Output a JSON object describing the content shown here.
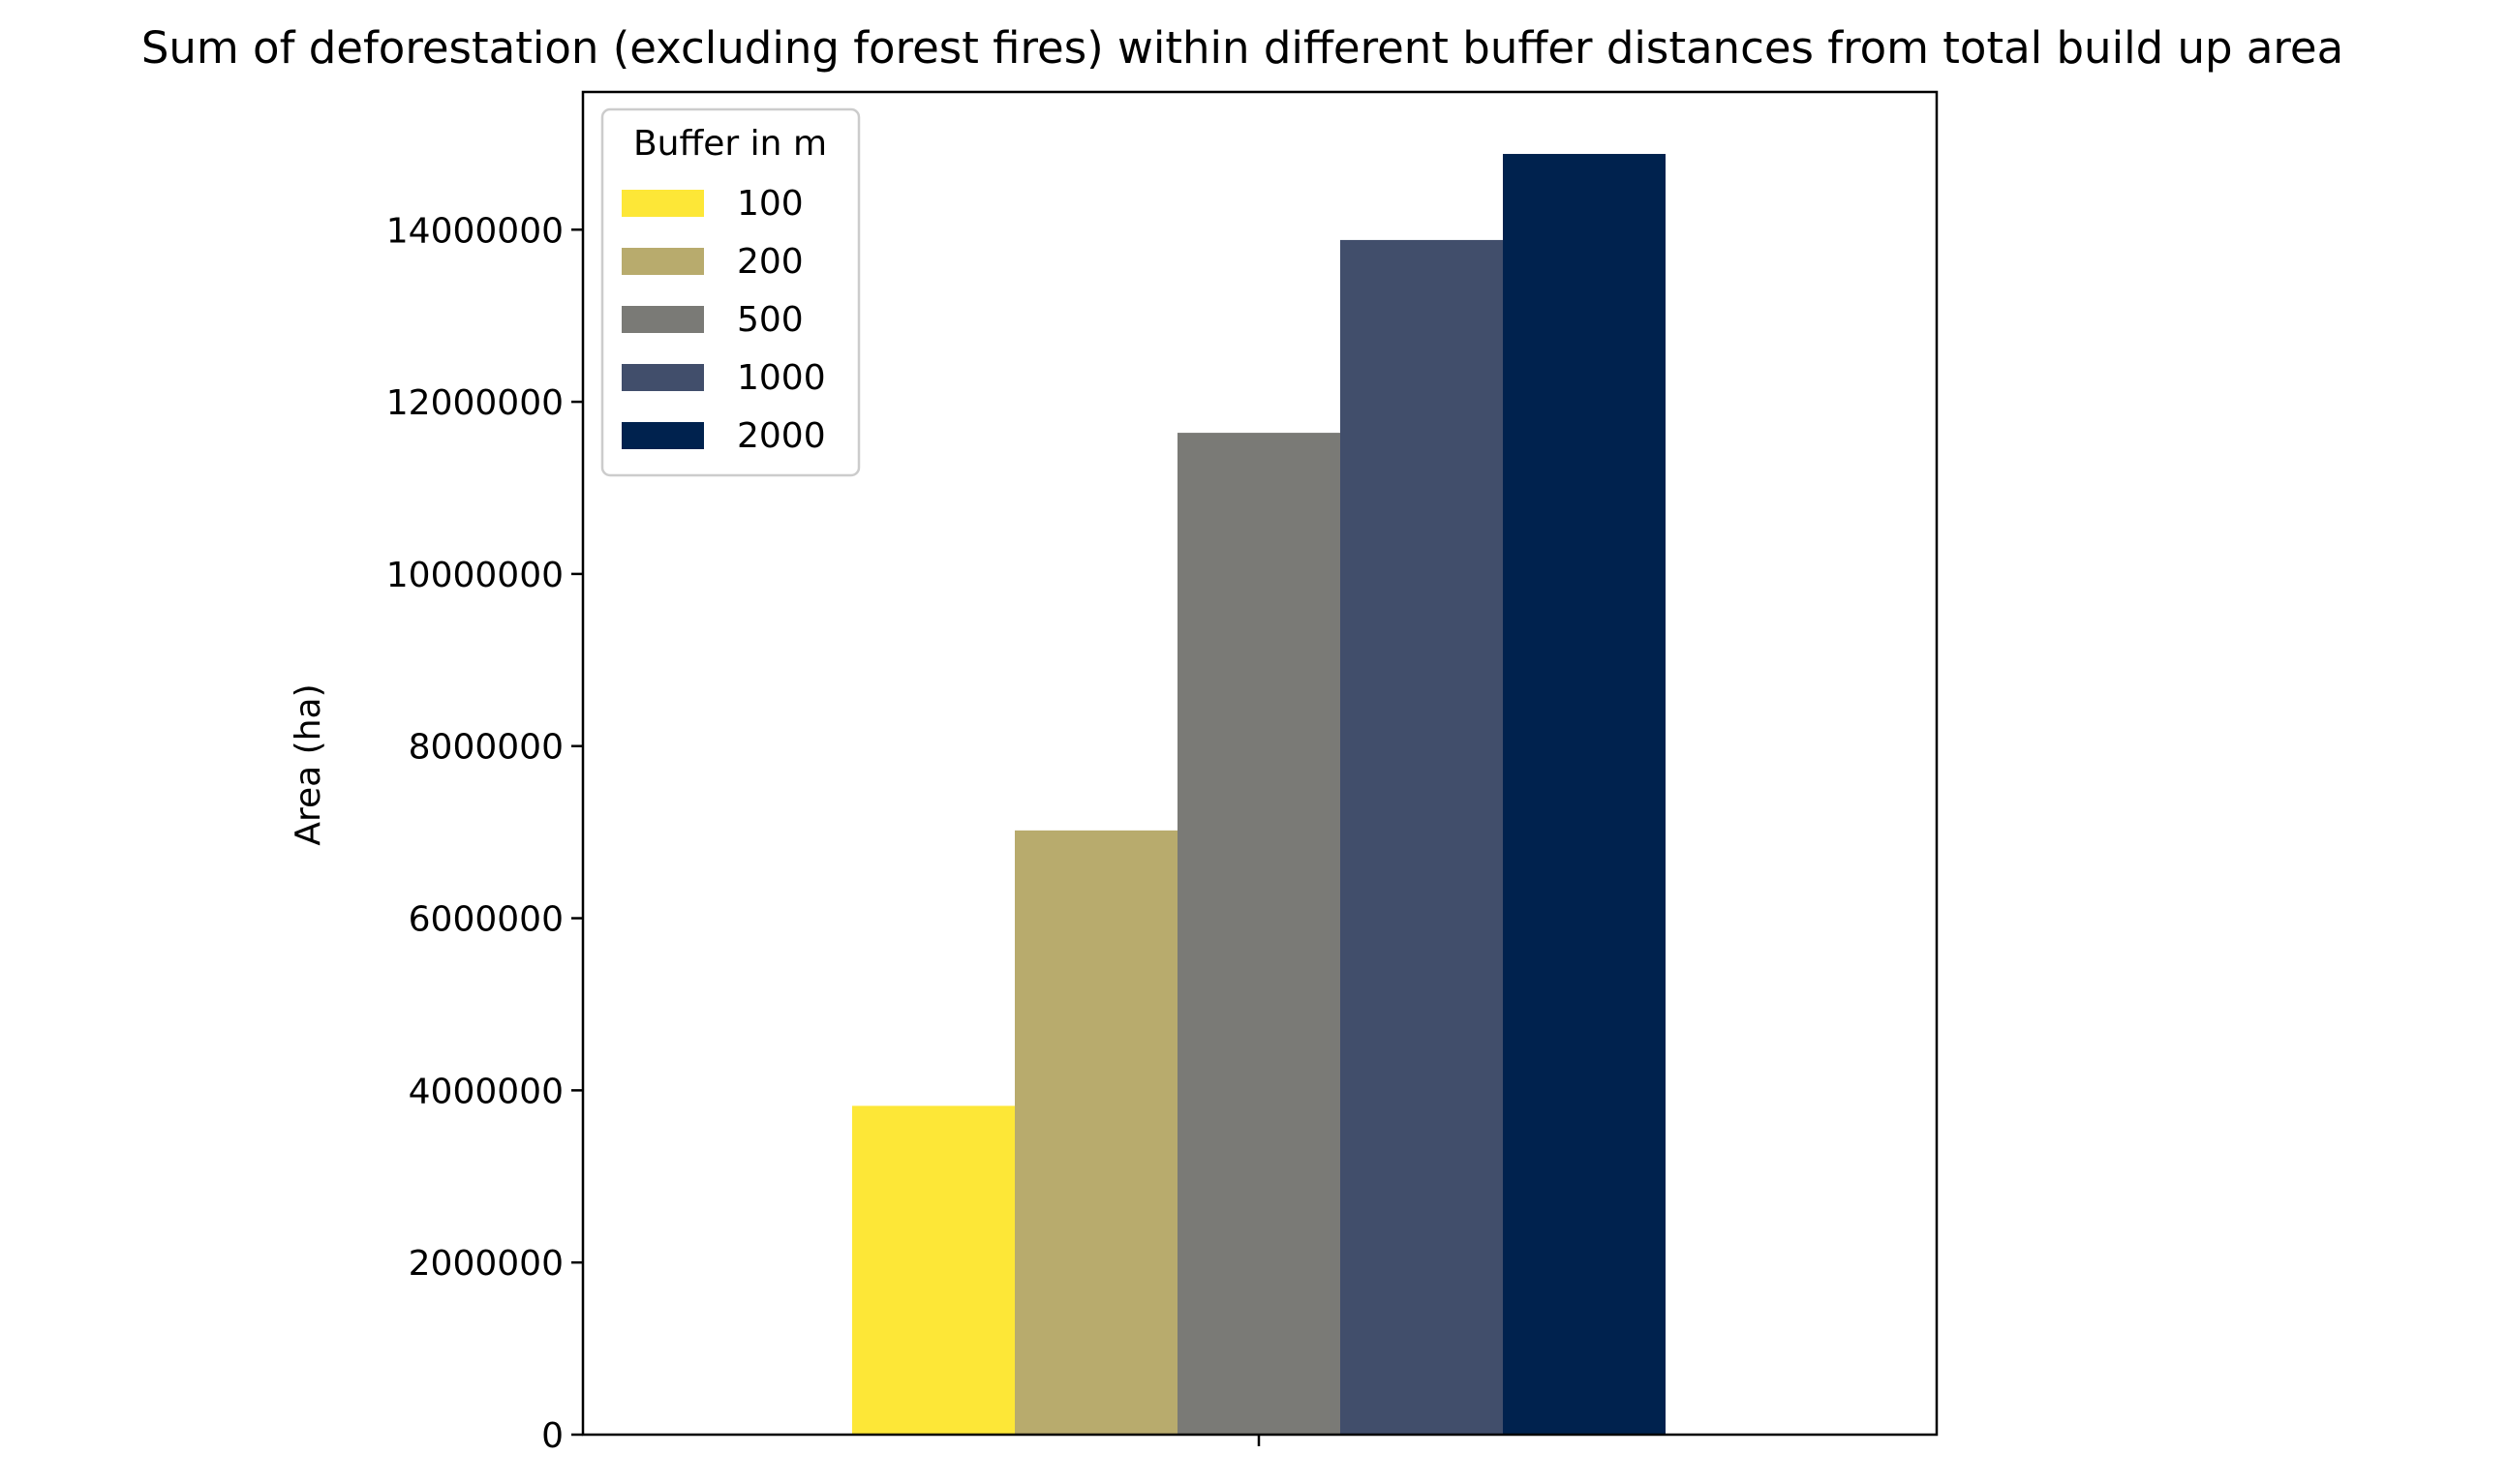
{
  "chart_data": {
    "type": "bar",
    "title": "Sum of deforestation (excluding forest fires) within different buffer distances from total build up area",
    "xlabel": "",
    "ylabel": "Area (ha)",
    "categories": [
      ""
    ],
    "ylim": [
      0,
      15600000
    ],
    "yticks": [
      0,
      2000000,
      4000000,
      6000000,
      8000000,
      10000000,
      12000000,
      14000000
    ],
    "ytick_labels": [
      "0",
      "2000000",
      "4000000",
      "6000000",
      "8000000",
      "10000000",
      "12000000",
      "14000000"
    ],
    "grid": false,
    "legend": {
      "title": "Buffer in m",
      "placement": "top-left"
    },
    "series": [
      {
        "name": "100",
        "color": "#fde737",
        "values": [
          3820000
        ]
      },
      {
        "name": "200",
        "color": "#b8ab6d",
        "values": [
          7020000
        ]
      },
      {
        "name": "500",
        "color": "#7a7a76",
        "values": [
          11640000
        ]
      },
      {
        "name": "1000",
        "color": "#414e6b",
        "values": [
          13880000
        ]
      },
      {
        "name": "2000",
        "color": "#00224e",
        "values": [
          14880000
        ]
      }
    ]
  }
}
